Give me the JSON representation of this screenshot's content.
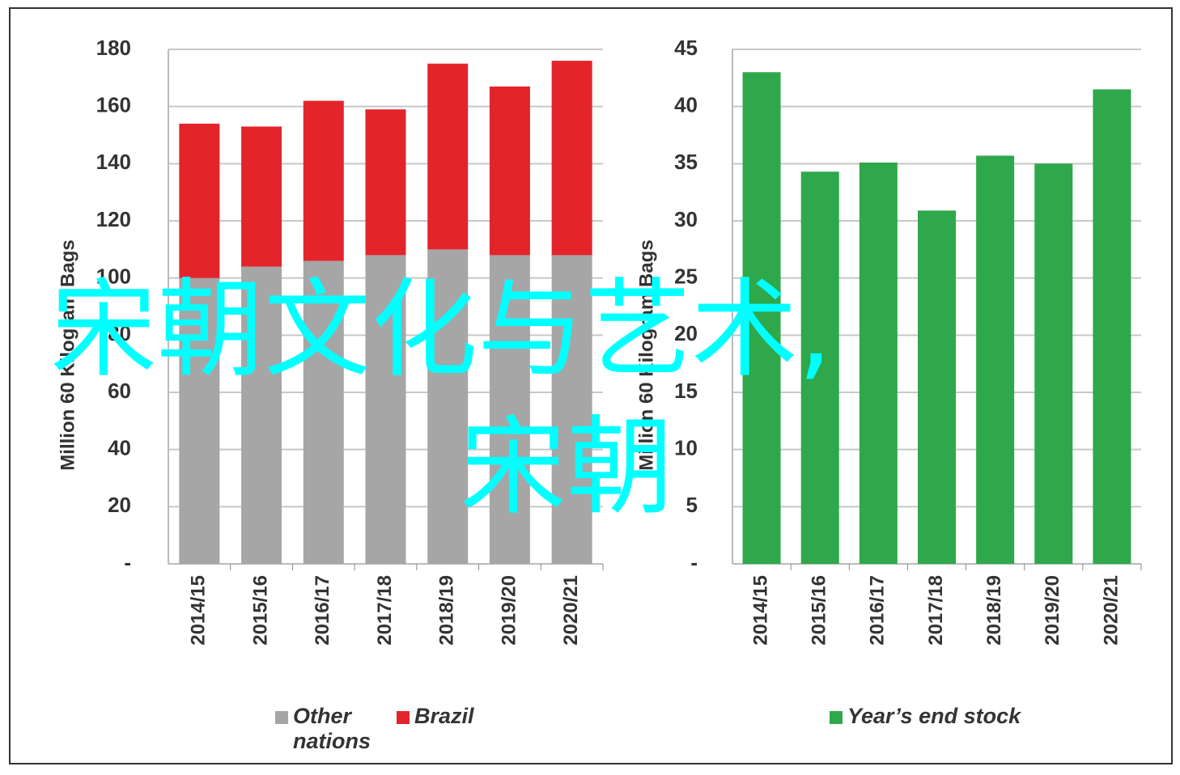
{
  "chart_data": [
    {
      "type": "bar",
      "stacked": true,
      "y_label": "Million 60 Kilogram Bags",
      "categories": [
        "2014/15",
        "2015/16",
        "2016/17",
        "2017/18",
        "2018/19",
        "2019/20",
        "2020/21"
      ],
      "series": [
        {
          "name": "Other nations",
          "color": "#a6a6a6",
          "values": [
            100,
            104,
            106,
            108,
            110,
            108,
            108
          ]
        },
        {
          "name": "Brazil",
          "color": "#e3242b",
          "values": [
            54,
            49,
            56,
            51,
            65,
            59,
            68
          ]
        }
      ],
      "ylim": [
        0,
        180
      ],
      "yticks": [
        {
          "value": 0,
          "label": "-"
        },
        20,
        40,
        60,
        80,
        100,
        120,
        140,
        160,
        180
      ],
      "grid": true
    },
    {
      "type": "bar",
      "stacked": false,
      "y_label": "Million 60 Kilogram Bags",
      "categories": [
        "2014/15",
        "2015/16",
        "2016/17",
        "2017/18",
        "2018/19",
        "2019/20",
        "2020/21"
      ],
      "series": [
        {
          "name": "Year’s end stock",
          "color": "#2ea84a",
          "values": [
            43,
            34.3,
            35.1,
            30.9,
            35.7,
            35,
            41.5
          ]
        }
      ],
      "ylim": [
        0,
        45
      ],
      "yticks": [
        {
          "value": 0,
          "label": "-"
        },
        5,
        10,
        15,
        20,
        25,
        30,
        35,
        40,
        45
      ],
      "grid": true
    }
  ],
  "overlay": [
    "宋朝文化与艺术,",
    "宋朝"
  ]
}
